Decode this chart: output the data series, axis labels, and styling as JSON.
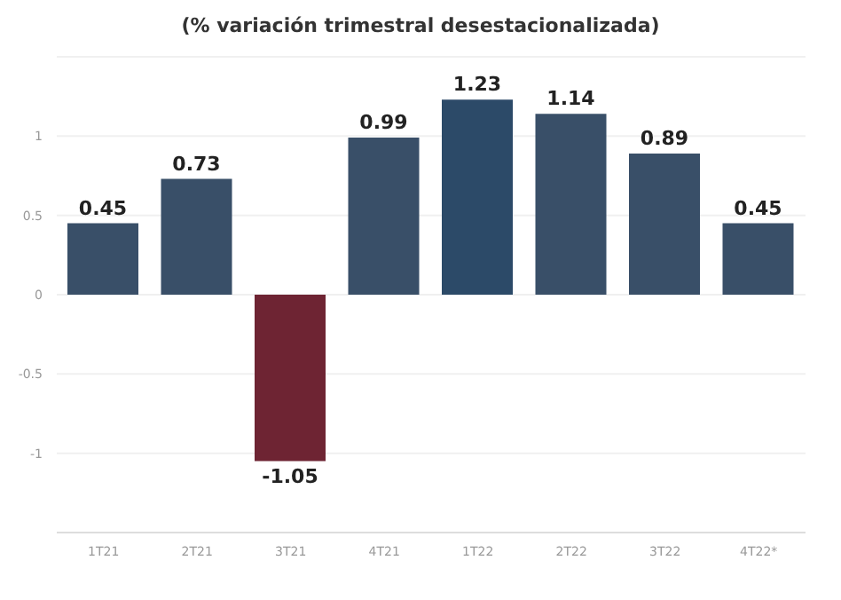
{
  "chart_data": {
    "type": "bar",
    "title": "(% variación trimestral desestacionalizada)",
    "categories": [
      "1T21",
      "2T21",
      "3T21",
      "4T21",
      "1T22",
      "2T22",
      "3T22",
      "4T22*"
    ],
    "values": [
      0.45,
      0.73,
      -1.05,
      0.99,
      1.23,
      1.14,
      0.89,
      0.45
    ],
    "colors": [
      "#394f68",
      "#394f68",
      "#6e2433",
      "#394f68",
      "#2c4a68",
      "#394f68",
      "#394f68",
      "#394f68"
    ],
    "ylim": [
      -1.5,
      1.5
    ],
    "yticks": [
      -1,
      -0.5,
      0,
      0.5,
      1
    ],
    "grid": "y",
    "data_labels": true
  }
}
